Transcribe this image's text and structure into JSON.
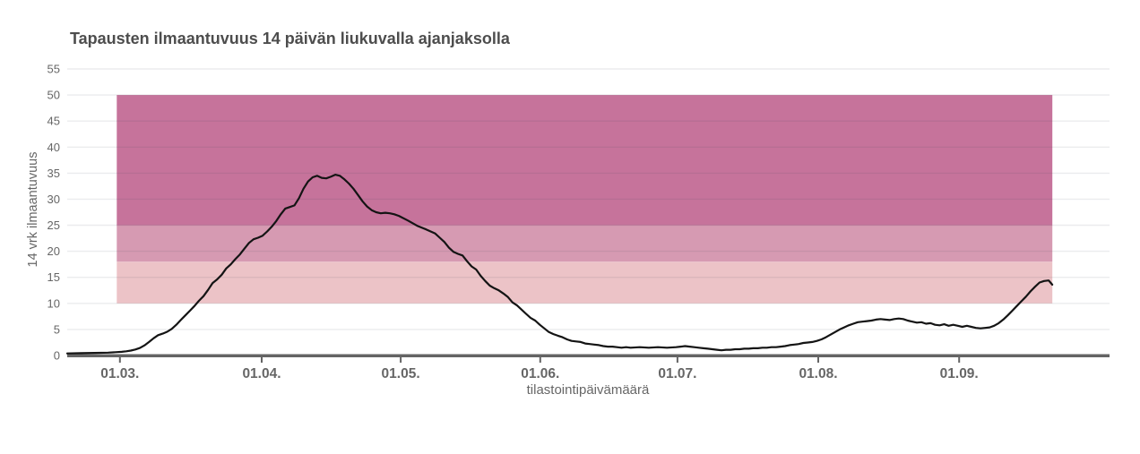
{
  "chart_data": {
    "type": "line",
    "title": "Tapausten ilmaantuvuus 14 päivän liukuvalla ajanjaksolla",
    "xlabel": "tilastointipäivämäärä",
    "ylabel": "14 vrk ilmaantuvuus",
    "grid": true,
    "legend": "none",
    "ylim": [
      0,
      56.2
    ],
    "xlim_days": [
      0,
      229.4
    ],
    "y_ticks": [
      0,
      5,
      10,
      15,
      20,
      25,
      30,
      35,
      40,
      45,
      50,
      55
    ],
    "x_ticks": [
      {
        "label": "01.03.",
        "day": 11.6
      },
      {
        "label": "01.04.",
        "day": 42.8
      },
      {
        "label": "01.05.",
        "day": 73.4
      },
      {
        "label": "01.06.",
        "day": 104.1
      },
      {
        "label": "01.07.",
        "day": 134.3
      },
      {
        "label": "01.08.",
        "day": 165.3
      },
      {
        "label": "01.09.",
        "day": 196.3
      }
    ],
    "threshold_bands": [
      {
        "from": 10,
        "to": 18,
        "color": "#ecc3c7",
        "start_day": 10.9,
        "end_day": 216.8
      },
      {
        "from": 18,
        "to": 25,
        "color": "#d69ab2",
        "start_day": 10.9,
        "end_day": 216.8
      },
      {
        "from": 25,
        "to": 50,
        "color": "#c6739b",
        "start_day": 10.9,
        "end_day": 216.8
      }
    ],
    "series": [
      {
        "name": "14 vrk ilmaantuvuus",
        "color": "#141414",
        "points": [
          [
            0,
            0.4
          ],
          [
            3,
            0.45
          ],
          [
            6,
            0.5
          ],
          [
            9,
            0.55
          ],
          [
            11,
            0.65
          ],
          [
            12,
            0.7
          ],
          [
            13,
            0.8
          ],
          [
            14,
            0.95
          ],
          [
            15,
            1.15
          ],
          [
            16,
            1.45
          ],
          [
            17,
            1.95
          ],
          [
            18,
            2.6
          ],
          [
            19,
            3.3
          ],
          [
            20,
            3.9
          ],
          [
            21,
            4.2
          ],
          [
            22,
            4.55
          ],
          [
            23,
            5.1
          ],
          [
            24,
            5.9
          ],
          [
            25,
            6.8
          ],
          [
            26,
            7.7
          ],
          [
            27,
            8.6
          ],
          [
            28,
            9.5
          ],
          [
            29,
            10.5
          ],
          [
            30,
            11.4
          ],
          [
            31,
            12.6
          ],
          [
            32,
            13.9
          ],
          [
            33,
            14.6
          ],
          [
            34,
            15.5
          ],
          [
            35,
            16.7
          ],
          [
            36,
            17.5
          ],
          [
            37,
            18.5
          ],
          [
            38,
            19.4
          ],
          [
            39,
            20.5
          ],
          [
            40,
            21.6
          ],
          [
            41,
            22.3
          ],
          [
            42,
            22.6
          ],
          [
            43,
            23.0
          ],
          [
            44,
            23.8
          ],
          [
            45,
            24.7
          ],
          [
            46,
            25.8
          ],
          [
            47,
            27.1
          ],
          [
            48,
            28.2
          ],
          [
            49,
            28.5
          ],
          [
            50,
            28.8
          ],
          [
            51,
            30.2
          ],
          [
            52,
            32.0
          ],
          [
            53,
            33.4
          ],
          [
            54,
            34.2
          ],
          [
            55,
            34.5
          ],
          [
            56,
            34.1
          ],
          [
            57,
            34.0
          ],
          [
            58,
            34.3
          ],
          [
            59,
            34.7
          ],
          [
            60,
            34.5
          ],
          [
            61,
            33.8
          ],
          [
            62,
            33.0
          ],
          [
            63,
            32.0
          ],
          [
            64,
            30.8
          ],
          [
            65,
            29.6
          ],
          [
            66,
            28.6
          ],
          [
            67,
            27.9
          ],
          [
            68,
            27.5
          ],
          [
            69,
            27.3
          ],
          [
            70,
            27.4
          ],
          [
            71,
            27.3
          ],
          [
            72,
            27.1
          ],
          [
            73,
            26.8
          ],
          [
            75,
            25.9
          ],
          [
            77,
            24.9
          ],
          [
            79,
            24.2
          ],
          [
            81,
            23.4
          ],
          [
            82,
            22.6
          ],
          [
            83,
            21.8
          ],
          [
            84,
            20.7
          ],
          [
            85,
            19.9
          ],
          [
            86,
            19.5
          ],
          [
            87,
            19.2
          ],
          [
            88,
            18.1
          ],
          [
            89,
            17.1
          ],
          [
            90,
            16.5
          ],
          [
            91,
            15.3
          ],
          [
            92,
            14.3
          ],
          [
            93,
            13.4
          ],
          [
            94,
            12.9
          ],
          [
            95,
            12.5
          ],
          [
            96,
            11.9
          ],
          [
            97,
            11.2
          ],
          [
            98,
            10.2
          ],
          [
            99,
            9.6
          ],
          [
            100,
            8.8
          ],
          [
            101,
            8.0
          ],
          [
            102,
            7.2
          ],
          [
            103,
            6.7
          ],
          [
            104,
            5.9
          ],
          [
            105,
            5.2
          ],
          [
            106,
            4.5
          ],
          [
            107,
            4.1
          ],
          [
            108,
            3.8
          ],
          [
            109,
            3.5
          ],
          [
            110,
            3.1
          ],
          [
            111,
            2.8
          ],
          [
            112,
            2.7
          ],
          [
            113,
            2.6
          ],
          [
            114,
            2.3
          ],
          [
            115,
            2.2
          ],
          [
            116,
            2.1
          ],
          [
            117,
            2.0
          ],
          [
            118,
            1.8
          ],
          [
            119,
            1.7
          ],
          [
            120,
            1.7
          ],
          [
            121,
            1.6
          ],
          [
            122,
            1.5
          ],
          [
            123,
            1.6
          ],
          [
            124,
            1.5
          ],
          [
            126,
            1.6
          ],
          [
            128,
            1.5
          ],
          [
            130,
            1.6
          ],
          [
            132,
            1.5
          ],
          [
            134,
            1.6
          ],
          [
            135,
            1.7
          ],
          [
            136,
            1.8
          ],
          [
            137,
            1.7
          ],
          [
            138,
            1.6
          ],
          [
            139,
            1.5
          ],
          [
            140,
            1.4
          ],
          [
            141,
            1.3
          ],
          [
            142,
            1.2
          ],
          [
            143,
            1.1
          ],
          [
            144,
            1.0
          ],
          [
            145,
            1.1
          ],
          [
            146,
            1.1
          ],
          [
            147,
            1.2
          ],
          [
            148,
            1.2
          ],
          [
            149,
            1.3
          ],
          [
            150,
            1.3
          ],
          [
            151,
            1.4
          ],
          [
            152,
            1.4
          ],
          [
            153,
            1.5
          ],
          [
            154,
            1.5
          ],
          [
            155,
            1.6
          ],
          [
            156,
            1.6
          ],
          [
            157,
            1.7
          ],
          [
            158,
            1.8
          ],
          [
            159,
            2.0
          ],
          [
            160,
            2.1
          ],
          [
            161,
            2.2
          ],
          [
            162,
            2.4
          ],
          [
            163,
            2.5
          ],
          [
            164,
            2.6
          ],
          [
            165,
            2.8
          ],
          [
            166,
            3.1
          ],
          [
            167,
            3.5
          ],
          [
            168,
            4.0
          ],
          [
            169,
            4.5
          ],
          [
            170,
            5.0
          ],
          [
            171,
            5.4
          ],
          [
            172,
            5.8
          ],
          [
            173,
            6.1
          ],
          [
            174,
            6.4
          ],
          [
            175,
            6.5
          ],
          [
            176,
            6.6
          ],
          [
            177,
            6.7
          ],
          [
            178,
            6.9
          ],
          [
            179,
            7.0
          ],
          [
            180,
            6.9
          ],
          [
            181,
            6.8
          ],
          [
            182,
            7.0
          ],
          [
            183,
            7.1
          ],
          [
            184,
            7.0
          ],
          [
            185,
            6.7
          ],
          [
            186,
            6.5
          ],
          [
            187,
            6.3
          ],
          [
            188,
            6.4
          ],
          [
            189,
            6.1
          ],
          [
            190,
            6.2
          ],
          [
            191,
            5.9
          ],
          [
            192,
            5.8
          ],
          [
            193,
            6.0
          ],
          [
            194,
            5.7
          ],
          [
            195,
            5.9
          ],
          [
            196,
            5.7
          ],
          [
            197,
            5.5
          ],
          [
            198,
            5.7
          ],
          [
            199,
            5.5
          ],
          [
            200,
            5.3
          ],
          [
            201,
            5.2
          ],
          [
            202,
            5.3
          ],
          [
            203,
            5.4
          ],
          [
            204,
            5.7
          ],
          [
            205,
            6.2
          ],
          [
            206,
            6.9
          ],
          [
            207,
            7.7
          ],
          [
            208,
            8.6
          ],
          [
            209,
            9.5
          ],
          [
            210,
            10.4
          ],
          [
            211,
            11.3
          ],
          [
            212,
            12.3
          ],
          [
            213,
            13.2
          ],
          [
            214,
            14.0
          ],
          [
            215,
            14.3
          ],
          [
            216,
            14.4
          ],
          [
            216.8,
            13.6
          ]
        ]
      }
    ]
  },
  "style": {
    "background": "#ffffff",
    "title_color": "#4d4d4d",
    "tick_color": "#666666",
    "axis_color": "#646464",
    "grid_color_rgba": "rgba(60,70,90,0.10)",
    "line_color": "#141414"
  }
}
